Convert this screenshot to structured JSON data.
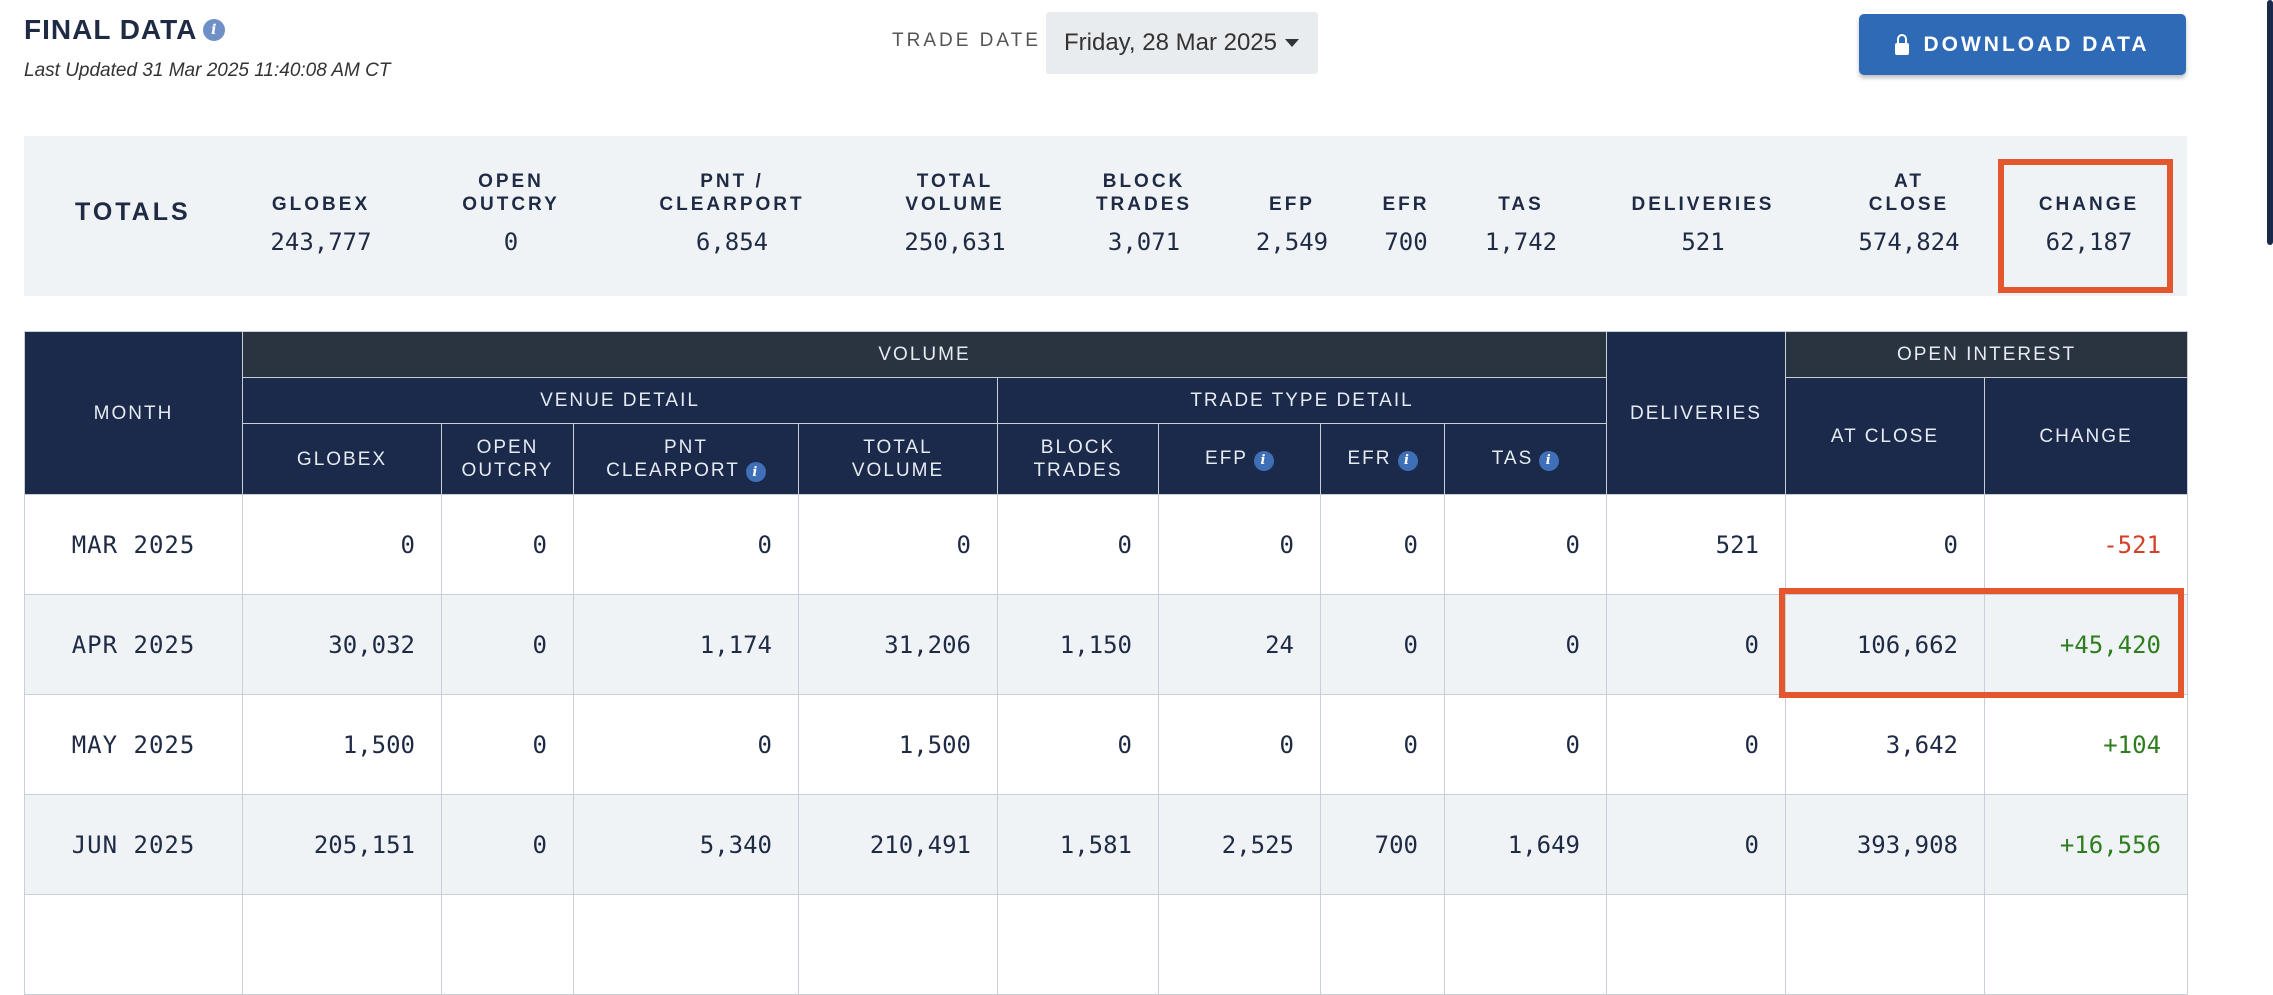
{
  "header": {
    "title": "FINAL DATA",
    "info_icon": "i",
    "last_updated": "Last Updated 31 Mar 2025 11:40:08 AM CT",
    "trade_date_label": "TRADE DATE",
    "trade_date_value": "Friday, 28 Mar 2025",
    "download_label": "DOWNLOAD DATA"
  },
  "totals": {
    "label": "TOTALS",
    "columns": [
      {
        "label": "GLOBEX",
        "value": "243,777"
      },
      {
        "label": "OPEN OUTCRY",
        "value": "0"
      },
      {
        "label": "PNT / CLEARPORT",
        "value": "6,854"
      },
      {
        "label": "TOTAL VOLUME",
        "value": "250,631"
      },
      {
        "label": "BLOCK TRADES",
        "value": "3,071"
      },
      {
        "label": "EFP",
        "value": "2,549"
      },
      {
        "label": "EFR",
        "value": "700"
      },
      {
        "label": "TAS",
        "value": "1,742"
      },
      {
        "label": "DELIVERIES",
        "value": "521"
      },
      {
        "label": "AT CLOSE",
        "value": "574,824"
      },
      {
        "label": "CHANGE",
        "value": "62,187"
      }
    ]
  },
  "table": {
    "group_headers": {
      "month": "MONTH",
      "volume": "VOLUME",
      "venue_detail": "VENUE DETAIL",
      "trade_type_detail": "TRADE TYPE DETAIL",
      "deliveries": "DELIVERIES",
      "open_interest": "OPEN INTEREST"
    },
    "columns": {
      "globex": "GLOBEX",
      "open_outcry": "OPEN OUTCRY",
      "pnt_clearport": "PNT CLEARPORT",
      "total_volume": "TOTAL VOLUME",
      "block_trades": "BLOCK TRADES",
      "efp": "EFP",
      "efr": "EFR",
      "tas": "TAS",
      "at_close": "AT CLOSE",
      "change": "CHANGE"
    },
    "rows": [
      {
        "month": "MAR 2025",
        "globex": "0",
        "open_outcry": "0",
        "pnt": "0",
        "total": "0",
        "block": "0",
        "efp": "0",
        "efr": "0",
        "tas": "0",
        "deliveries": "521",
        "at_close": "0",
        "change": "-521"
      },
      {
        "month": "APR 2025",
        "globex": "30,032",
        "open_outcry": "0",
        "pnt": "1,174",
        "total": "31,206",
        "block": "1,150",
        "efp": "24",
        "efr": "0",
        "tas": "0",
        "deliveries": "0",
        "at_close": "106,662",
        "change": "+45,420"
      },
      {
        "month": "MAY 2025",
        "globex": "1,500",
        "open_outcry": "0",
        "pnt": "0",
        "total": "1,500",
        "block": "0",
        "efp": "0",
        "efr": "0",
        "tas": "0",
        "deliveries": "0",
        "at_close": "3,642",
        "change": "+104"
      },
      {
        "month": "JUN 2025",
        "globex": "205,151",
        "open_outcry": "0",
        "pnt": "5,340",
        "total": "210,491",
        "block": "1,581",
        "efp": "2,525",
        "efr": "700",
        "tas": "1,649",
        "deliveries": "0",
        "at_close": "393,908",
        "change": "+16,556"
      }
    ]
  },
  "colors": {
    "navy": "#1b2a4a",
    "accent_blue": "#2f6ab7",
    "highlight": "#e4572e",
    "negative": "#d43f2a",
    "positive": "#2e7d1e"
  }
}
